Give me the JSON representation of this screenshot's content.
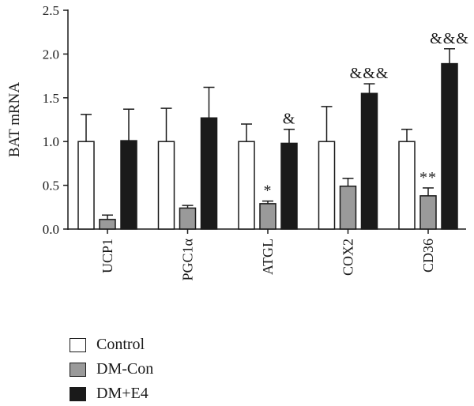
{
  "chart_data": {
    "type": "bar",
    "ylabel": "BAT mRNA",
    "ylim": [
      0,
      2.5
    ],
    "yticks": [
      "0.0",
      "0.5",
      "1.0",
      "1.5",
      "2.0",
      "2.5"
    ],
    "categories": [
      "UCP1",
      "PGC1α",
      "ATGL",
      "COX2",
      "CD36"
    ],
    "series": [
      {
        "name": "Control",
        "color": "#ffffff",
        "values": [
          1.0,
          1.0,
          1.0,
          1.0,
          1.0
        ],
        "errors": [
          0.31,
          0.38,
          0.2,
          0.4,
          0.14
        ]
      },
      {
        "name": "DM-Con",
        "color": "#9a9a9a",
        "values": [
          0.11,
          0.24,
          0.29,
          0.49,
          0.38
        ],
        "errors": [
          0.05,
          0.03,
          0.03,
          0.09,
          0.09
        ]
      },
      {
        "name": "DM+E4",
        "color": "#1a1a1a",
        "values": [
          1.01,
          1.27,
          0.98,
          1.55,
          1.89
        ],
        "errors": [
          0.36,
          0.35,
          0.16,
          0.11,
          0.17
        ]
      }
    ],
    "annotations": [
      {
        "category": "ATGL",
        "series": "DM-Con",
        "text": "*"
      },
      {
        "category": "ATGL",
        "series": "DM+E4",
        "text": "&"
      },
      {
        "category": "COX2",
        "series": "DM+E4",
        "text": "&&&"
      },
      {
        "category": "CD36",
        "series": "DM-Con",
        "text": "**"
      },
      {
        "category": "CD36",
        "series": "DM+E4",
        "text": "&&&"
      }
    ],
    "legend_position": "bottom-left"
  }
}
